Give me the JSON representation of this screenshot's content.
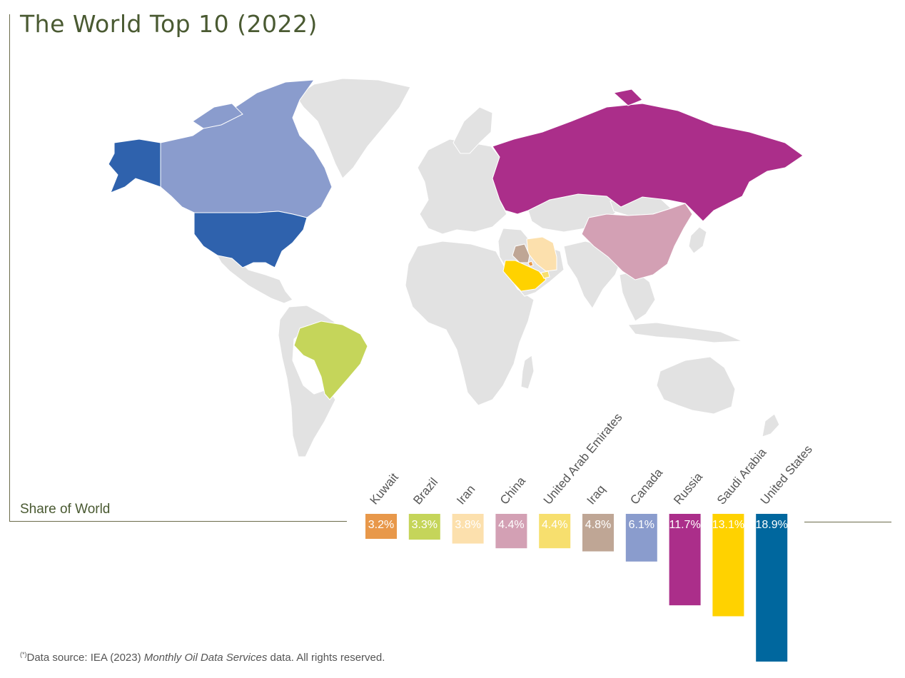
{
  "title": "The World Top 10 (2022)",
  "share_label": "Share of World",
  "footnote": {
    "marker": "(*)",
    "prefix": "Data source: IEA (2023) ",
    "source": "Monthly Oil Data Services",
    "suffix": " data. All rights reserved."
  },
  "colors": {
    "land": "#e2e2e2",
    "United States": "#2f62ad",
    "Canada": "#8a9ccd",
    "Russia": "#ab2e8a",
    "Saudi Arabia": "#ffd200",
    "China": "#d3a0b4",
    "Iraq": "#bfa695",
    "United Arab Emirates": "#f7df6e",
    "Brazil": "#c5d55a",
    "Iran": "#fce0ad",
    "Kuwait": "#e8984a",
    "bar_US": "#00679e"
  },
  "chart_data": {
    "type": "bar",
    "title": "The World Top 10 (2022)",
    "ylabel": "Share of World",
    "unit": "%",
    "categories": [
      "Kuwait",
      "Brazil",
      "Iran",
      "China",
      "United Arab Emirates",
      "Iraq",
      "Canada",
      "Russia",
      "Saudi Arabia",
      "United States"
    ],
    "values": [
      3.2,
      3.3,
      3.8,
      4.4,
      4.4,
      4.8,
      6.1,
      11.7,
      13.1,
      18.9
    ],
    "labels": [
      "3.2%",
      "3.3%",
      "3.8%",
      "4.4%",
      "4.4%",
      "4.8%",
      "6.1%",
      "11.7%",
      "13.1%",
      "18.9%"
    ],
    "bar_colors": [
      "#e8984a",
      "#c5d55a",
      "#fce0ad",
      "#d3a0b4",
      "#f7df6e",
      "#bfa695",
      "#8a9ccd",
      "#ab2e8a",
      "#ffd200",
      "#00679e"
    ],
    "ylim": [
      0,
      18.9
    ]
  }
}
